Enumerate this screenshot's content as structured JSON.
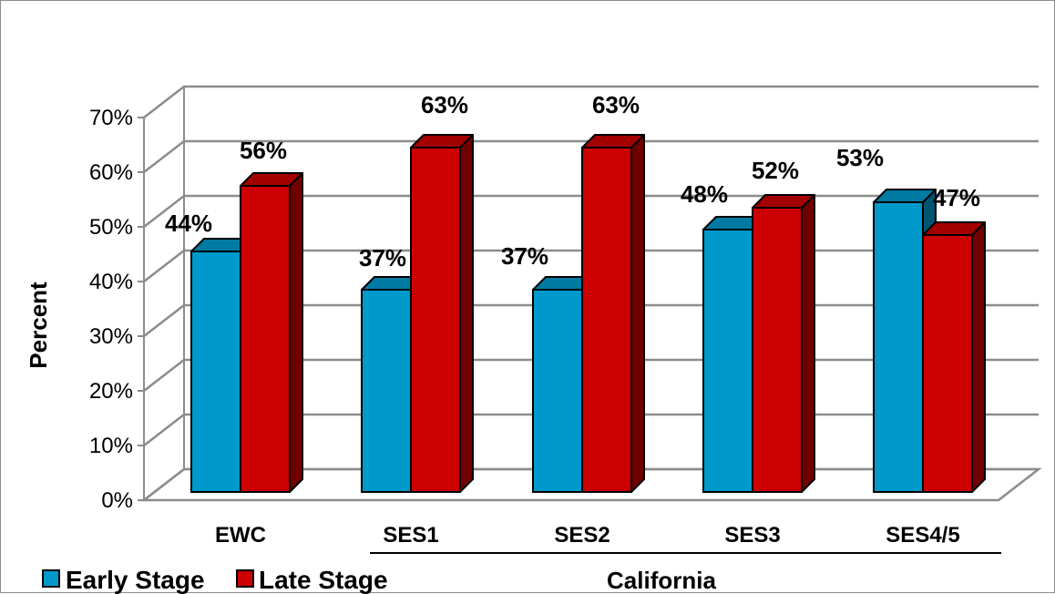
{
  "chart_data": {
    "type": "bar",
    "title": "",
    "xlabel": "",
    "ylabel": "Percent",
    "group_label": "California",
    "categories": [
      "EWC",
      "SES1",
      "SES2",
      "SES3",
      "SES4/5"
    ],
    "series": [
      {
        "name": "Early Stage",
        "values": [
          44,
          37,
          37,
          48,
          53
        ],
        "labels": [
          "44%",
          "37%",
          "37%",
          "48%",
          "53%"
        ],
        "color": "#0099CC"
      },
      {
        "name": "Late Stage",
        "values": [
          56,
          63,
          63,
          52,
          47
        ],
        "labels": [
          "56%",
          "63%",
          "63%",
          "52%",
          "47%"
        ],
        "color": "#CC0000"
      }
    ],
    "ylim": [
      0,
      70
    ],
    "yticks": [
      "0%",
      "10%",
      "20%",
      "30%",
      "40%",
      "50%",
      "60%",
      "70%"
    ],
    "grid": true,
    "three_d": true,
    "legend_position": "bottom-left"
  }
}
